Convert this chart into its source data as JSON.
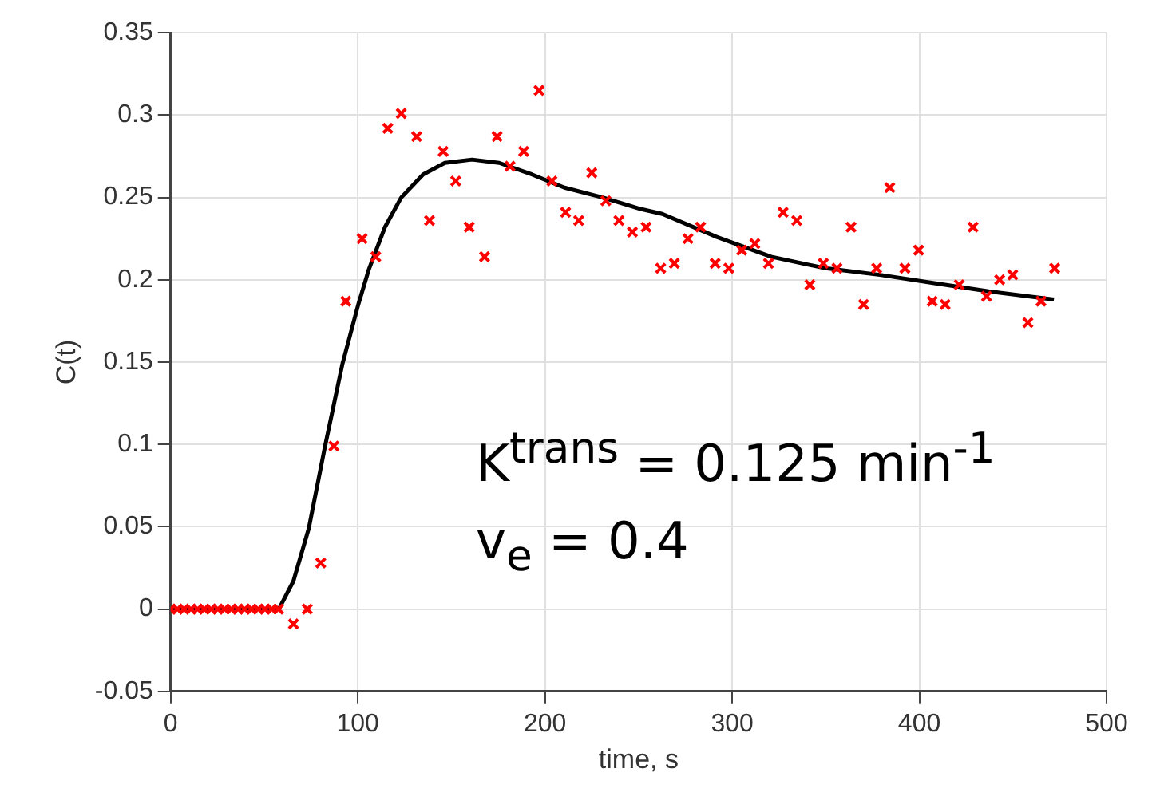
{
  "chart_data": {
    "type": "scatter",
    "xlabel": "time, s",
    "ylabel": "C(t)",
    "xlim": [
      0,
      500
    ],
    "xticks": [
      0,
      100,
      200,
      300,
      400,
      500
    ],
    "ylim": [
      -0.05,
      0.35
    ],
    "yticks": [
      -0.05,
      0,
      0.05,
      0.1,
      0.15,
      0.2,
      0.25,
      0.3,
      0.35
    ],
    "grid": true,
    "legend": false,
    "annotations": [
      "K$^{trans}$ = 0.125 min$^{-1}$",
      "v$_{e}$ = 0.4"
    ],
    "series": [
      {
        "marker": "cross",
        "color": "#ff0000",
        "x": [
          0,
          3.6,
          7.2,
          10.8,
          14.4,
          18,
          21.6,
          25.2,
          28.8,
          32.4,
          36,
          39.6,
          43.2,
          46.8,
          50.4,
          54,
          57.6,
          65.6,
          73,
          80.2,
          87.2,
          93.6,
          102.3,
          109.6,
          116,
          123.2,
          131.4,
          138.3,
          145.6,
          152.3,
          159.5,
          167.7,
          174.4,
          181.3,
          188.6,
          196.8,
          203.7,
          211,
          218,
          225,
          232.5,
          239.5,
          246.7,
          254,
          261.8,
          269.1,
          276.4,
          283.1,
          290.9,
          298.2,
          305.1,
          312.1,
          319.4,
          327.2,
          334.5,
          341.5,
          348.7,
          356,
          363.5,
          370.2,
          377.2,
          384.2,
          392.3,
          399.6,
          406.9,
          413.8,
          421.3,
          428.7,
          435.9,
          442.9,
          449.9,
          458,
          465,
          472.3
        ],
        "values": [
          0,
          0,
          0,
          0,
          0,
          0,
          0,
          0,
          0,
          0,
          0,
          0,
          0,
          0,
          0,
          0,
          0,
          -0.009,
          0,
          0.028,
          0.099,
          0.187,
          0.225,
          0.214,
          0.292,
          0.301,
          0.287,
          0.236,
          0.278,
          0.26,
          0.232,
          0.214,
          0.287,
          0.269,
          0.278,
          0.315,
          0.26,
          0.241,
          0.236,
          0.265,
          0.248,
          0.236,
          0.229,
          0.232,
          0.207,
          0.21,
          0.225,
          0.232,
          0.21,
          0.207,
          0.218,
          0.222,
          0.21,
          0.241,
          0.236,
          0.197,
          0.21,
          0.207,
          0.232,
          0.185,
          0.207,
          0.256,
          0.207,
          0.218,
          0.187,
          0.185,
          0.197,
          0.232,
          0.19,
          0.2,
          0.203,
          0.174,
          0.187,
          0.207
        ]
      },
      {
        "type": "line",
        "marker": "none",
        "line_style": "solid",
        "color": "#000000",
        "x": [
          0,
          57.8,
          65.6,
          73.8,
          82.5,
          91.8,
          100,
          105.8,
          114.5,
          123.2,
          134.9,
          146.5,
          161,
          175.5,
          193,
          210.4,
          230.8,
          251.1,
          262.7,
          291.8,
          320.8,
          349.9,
          379,
          408,
          437,
          471.9
        ],
        "values": [
          0,
          0,
          0.017,
          0.049,
          0.099,
          0.149,
          0.184,
          0.206,
          0.232,
          0.25,
          0.264,
          0.271,
          0.273,
          0.271,
          0.264,
          0.256,
          0.25,
          0.243,
          0.24,
          0.226,
          0.214,
          0.207,
          0.203,
          0.198,
          0.193,
          0.188
        ]
      }
    ]
  }
}
